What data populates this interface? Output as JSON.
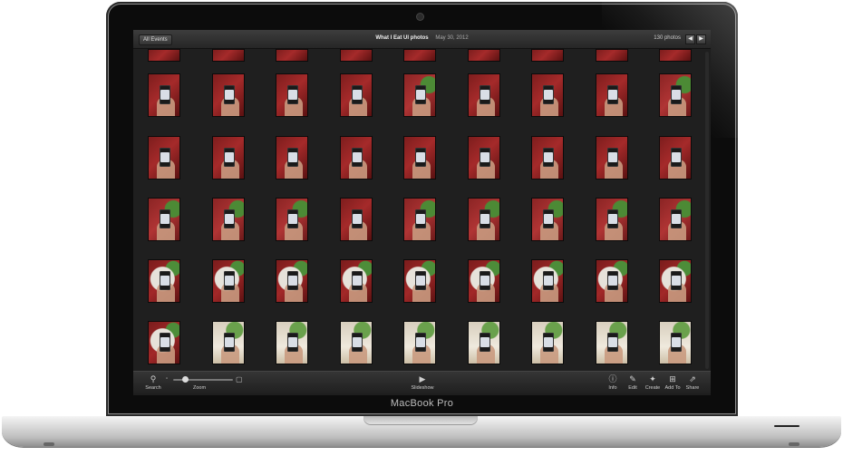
{
  "device": {
    "brand_label": "MacBook Pro"
  },
  "topbar": {
    "back_button": "All Events",
    "event_title": "What I Eat UI photos",
    "event_date": "May 30, 2012",
    "photo_count": "130 photos",
    "prev_icon": "arrow-left-icon",
    "next_icon": "arrow-right-icon"
  },
  "toolbar": {
    "search_label": "Search",
    "zoom_label": "Zoom",
    "zoom_level": 0.2,
    "slideshow_label": "Slideshow",
    "info_label": "Info",
    "edit_label": "Edit",
    "create_label": "Create",
    "addto_label": "Add To",
    "share_label": "Share"
  },
  "grid": {
    "columns": 9,
    "rows": [
      [
        "partial",
        "partial",
        "partial",
        "partial",
        "partial",
        "partial",
        "partial",
        "partial",
        "partial"
      ],
      [
        "red",
        "red",
        "red",
        "red",
        "green",
        "red",
        "red",
        "red",
        "green"
      ],
      [
        "red",
        "red",
        "red",
        "red",
        "red",
        "red",
        "red",
        "red",
        "red"
      ],
      [
        "green",
        "green",
        "green",
        "red",
        "green",
        "green",
        "green",
        "green",
        "green"
      ],
      [
        "plate",
        "plate",
        "plate",
        "plate",
        "plate",
        "plate",
        "plate",
        "plate",
        "plate"
      ],
      [
        "plate",
        "light",
        "light",
        "light",
        "light",
        "light",
        "light",
        "light",
        "light"
      ]
    ]
  }
}
